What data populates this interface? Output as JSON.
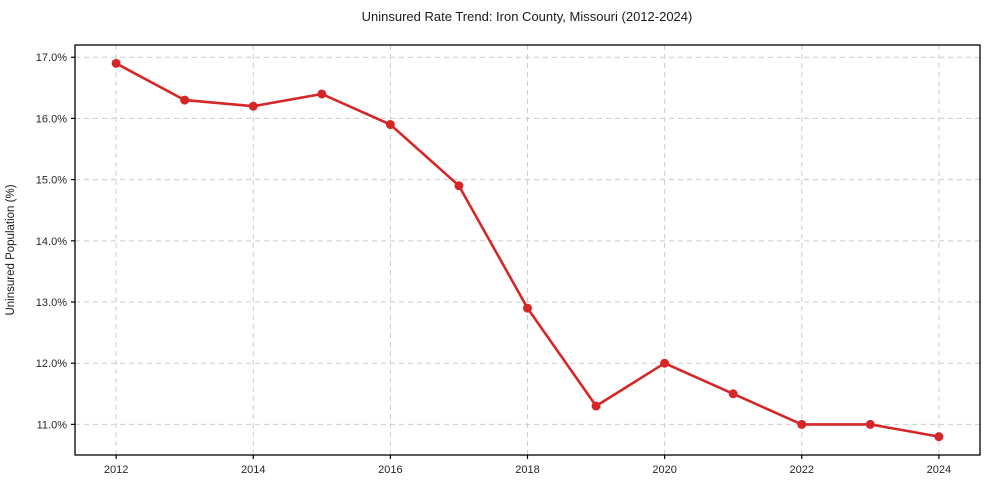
{
  "chart_data": {
    "type": "line",
    "title": "Uninsured Rate Trend: Iron County, Missouri (2012-2024)",
    "xlabel": "",
    "ylabel": "Uninsured Population (%)",
    "x": [
      2012,
      2013,
      2014,
      2015,
      2016,
      2017,
      2018,
      2019,
      2020,
      2021,
      2022,
      2023,
      2024
    ],
    "values": [
      16.9,
      16.3,
      16.2,
      16.4,
      15.9,
      14.9,
      12.9,
      11.3,
      12.0,
      11.5,
      11.0,
      11.0,
      10.8
    ],
    "xticks": [
      2012,
      2014,
      2016,
      2018,
      2020,
      2022,
      2024
    ],
    "xtick_labels": [
      "2012",
      "2014",
      "2016",
      "2018",
      "2020",
      "2022",
      "2024"
    ],
    "yticks": [
      11,
      12,
      13,
      14,
      15,
      16,
      17
    ],
    "ytick_labels": [
      "11.0%",
      "12.0%",
      "13.0%",
      "14.0%",
      "15.0%",
      "16.0%",
      "17.0%"
    ],
    "xlim": [
      2011.4,
      2024.6
    ],
    "ylim": [
      10.5,
      17.2
    ],
    "grid": true,
    "grid_style": "dashed",
    "legend": false,
    "line_color": "#d62728",
    "grid_color": "#cccccc",
    "spine_color": "#000000",
    "marker": "circle"
  }
}
